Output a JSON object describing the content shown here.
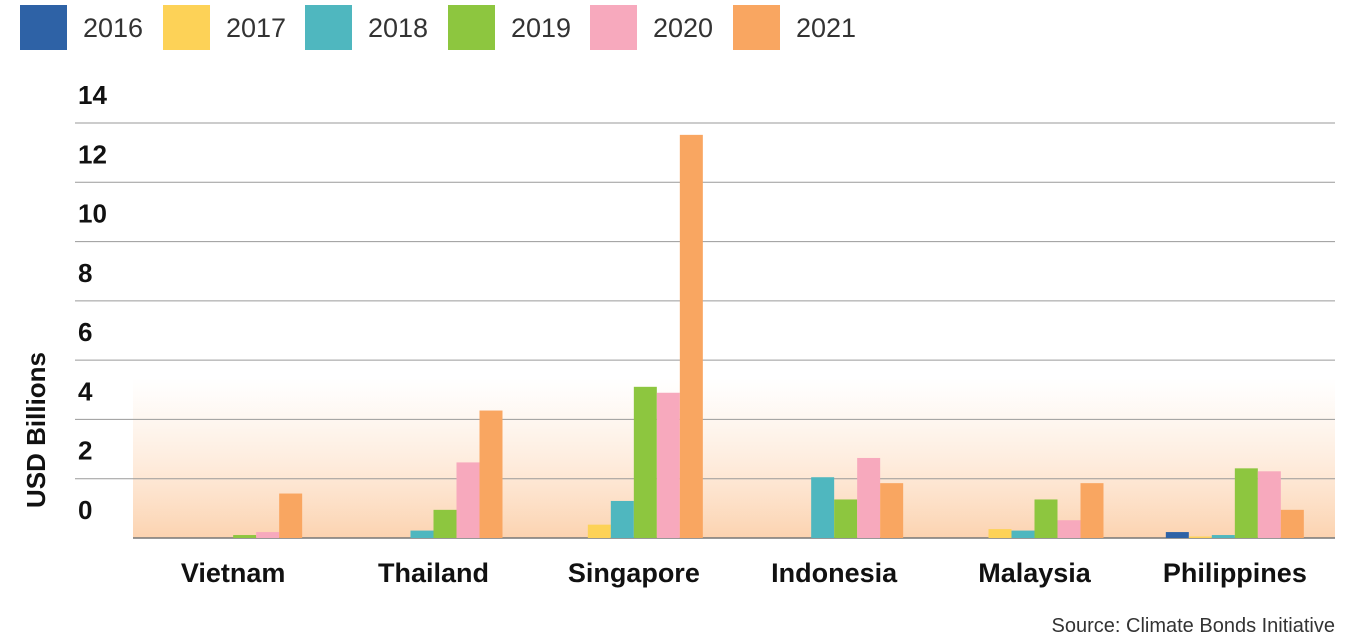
{
  "chart_data": {
    "type": "bar",
    "ylabel": "USD Billions",
    "xlabel": "",
    "ylim": [
      0,
      14
    ],
    "yticks": [
      0,
      2,
      4,
      6,
      8,
      10,
      12,
      14
    ],
    "grid": true,
    "legend_placement": "top-left",
    "categories": [
      "Vietnam",
      "Thailand",
      "Singapore",
      "Indonesia",
      "Malaysia",
      "Philippines"
    ],
    "series": [
      {
        "name": "2016",
        "color": "#2e62a6",
        "values": [
          0,
          0,
          0,
          0,
          0,
          0.2
        ]
      },
      {
        "name": "2017",
        "color": "#fdd257",
        "values": [
          0,
          0,
          0.45,
          0,
          0.3,
          0.05
        ]
      },
      {
        "name": "2018",
        "color": "#4fb7bf",
        "values": [
          0,
          0.25,
          1.25,
          2.05,
          0.25,
          0.1
        ]
      },
      {
        "name": "2019",
        "color": "#8dc63f",
        "values": [
          0.1,
          0.95,
          5.1,
          1.3,
          1.3,
          2.35
        ]
      },
      {
        "name": "2020",
        "color": "#f7a9bd",
        "values": [
          0.2,
          2.55,
          4.9,
          2.7,
          0.6,
          2.25
        ]
      },
      {
        "name": "2021",
        "color": "#f9a661",
        "values": [
          1.5,
          4.3,
          13.6,
          1.85,
          1.85,
          0.95
        ]
      }
    ],
    "source": "Source: Climate Bonds Initiative"
  }
}
